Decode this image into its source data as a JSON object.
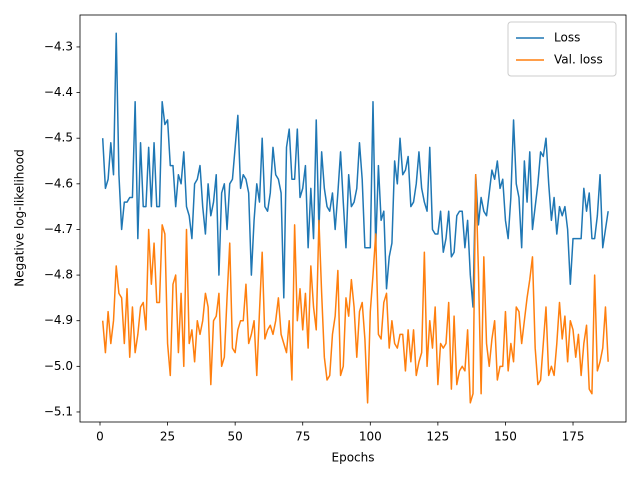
{
  "chart_data": {
    "type": "line",
    "xlabel": "Epochs",
    "ylabel": "Negative log-likelihood",
    "x": [
      1,
      2,
      3,
      4,
      5,
      6,
      7,
      8,
      9,
      10,
      11,
      12,
      13,
      14,
      15,
      16,
      17,
      18,
      19,
      20,
      21,
      22,
      23,
      24,
      25,
      26,
      27,
      28,
      29,
      30,
      31,
      32,
      33,
      34,
      35,
      36,
      37,
      38,
      39,
      40,
      41,
      42,
      43,
      44,
      45,
      46,
      47,
      48,
      49,
      50,
      51,
      52,
      53,
      54,
      55,
      56,
      57,
      58,
      59,
      60,
      61,
      62,
      63,
      64,
      65,
      66,
      67,
      68,
      69,
      70,
      71,
      72,
      73,
      74,
      75,
      76,
      77,
      78,
      79,
      80,
      81,
      82,
      83,
      84,
      85,
      86,
      87,
      88,
      89,
      90,
      91,
      92,
      93,
      94,
      95,
      96,
      97,
      98,
      99,
      100,
      101,
      102,
      103,
      104,
      105,
      106,
      107,
      108,
      109,
      110,
      111,
      112,
      113,
      114,
      115,
      116,
      117,
      118,
      119,
      120,
      121,
      122,
      123,
      124,
      125,
      126,
      127,
      128,
      129,
      130,
      131,
      132,
      133,
      134,
      135,
      136,
      137,
      138,
      139,
      140,
      141,
      142,
      143,
      144,
      145,
      146,
      147,
      148,
      149,
      150,
      151,
      152,
      153,
      154,
      155,
      156,
      157,
      158,
      159,
      160,
      161,
      162,
      163,
      164,
      165,
      166,
      167,
      168,
      169,
      170,
      171,
      172,
      173,
      174,
      175,
      176,
      177,
      178,
      179,
      180,
      181,
      182,
      183,
      184,
      185,
      186,
      187,
      188
    ],
    "series": [
      {
        "name": "Loss",
        "color": "#1f77b4",
        "values": [
          -4.5,
          -4.61,
          -4.59,
          -4.51,
          -4.58,
          -4.27,
          -4.58,
          -4.7,
          -4.64,
          -4.64,
          -4.63,
          -4.63,
          -4.42,
          -4.72,
          -4.51,
          -4.65,
          -4.65,
          -4.52,
          -4.65,
          -4.51,
          -4.65,
          -4.65,
          -4.42,
          -4.47,
          -4.46,
          -4.56,
          -4.56,
          -4.65,
          -4.58,
          -4.6,
          -4.53,
          -4.65,
          -4.67,
          -4.72,
          -4.6,
          -4.59,
          -4.56,
          -4.65,
          -4.71,
          -4.6,
          -4.67,
          -4.64,
          -4.58,
          -4.8,
          -4.62,
          -4.6,
          -4.7,
          -4.6,
          -4.59,
          -4.52,
          -4.45,
          -4.61,
          -4.58,
          -4.59,
          -4.62,
          -4.8,
          -4.68,
          -4.6,
          -4.64,
          -4.5,
          -4.65,
          -4.66,
          -4.62,
          -4.52,
          -4.58,
          -4.59,
          -4.62,
          -4.85,
          -4.52,
          -4.48,
          -4.59,
          -4.59,
          -4.48,
          -4.63,
          -4.61,
          -4.56,
          -4.74,
          -4.61,
          -4.72,
          -4.46,
          -4.7,
          -4.53,
          -4.61,
          -4.65,
          -4.66,
          -4.62,
          -4.7,
          -4.62,
          -4.53,
          -4.64,
          -4.74,
          -4.58,
          -4.65,
          -4.64,
          -4.61,
          -4.51,
          -4.59,
          -4.74,
          -4.74,
          -4.74,
          -4.42,
          -4.74,
          -4.56,
          -4.68,
          -4.66,
          -4.83,
          -4.76,
          -4.73,
          -4.55,
          -4.6,
          -4.5,
          -4.58,
          -4.57,
          -4.54,
          -4.65,
          -4.64,
          -4.6,
          -4.53,
          -4.61,
          -4.64,
          -4.66,
          -4.52,
          -4.7,
          -4.71,
          -4.71,
          -4.66,
          -4.75,
          -4.72,
          -4.66,
          -4.76,
          -4.75,
          -4.67,
          -4.66,
          -4.66,
          -4.74,
          -4.68,
          -4.8,
          -4.87,
          -4.58,
          -4.69,
          -4.63,
          -4.66,
          -4.67,
          -4.62,
          -4.57,
          -4.59,
          -4.55,
          -4.61,
          -4.59,
          -4.68,
          -4.72,
          -4.63,
          -4.46,
          -4.6,
          -4.63,
          -4.74,
          -4.55,
          -4.64,
          -4.53,
          -4.7,
          -4.65,
          -4.6,
          -4.53,
          -4.54,
          -4.5,
          -4.6,
          -4.68,
          -4.63,
          -4.71,
          -4.65,
          -4.67,
          -4.65,
          -4.7,
          -4.82,
          -4.72,
          -4.72,
          -4.72,
          -4.72,
          -4.61,
          -4.66,
          -4.62,
          -4.72,
          -4.72,
          -4.67,
          -4.58,
          -4.74,
          -4.7,
          -4.66
        ]
      },
      {
        "name": "Val. loss",
        "color": "#ff7f0e",
        "values": [
          -4.9,
          -4.97,
          -4.88,
          -4.95,
          -4.9,
          -4.78,
          -4.84,
          -4.85,
          -4.95,
          -4.83,
          -4.98,
          -4.87,
          -4.97,
          -4.93,
          -4.87,
          -4.86,
          -4.92,
          -4.7,
          -4.82,
          -4.73,
          -4.86,
          -4.86,
          -4.69,
          -4.71,
          -4.95,
          -5.02,
          -4.82,
          -4.8,
          -4.97,
          -4.84,
          -5.0,
          -4.7,
          -4.95,
          -4.92,
          -4.99,
          -4.9,
          -4.93,
          -4.9,
          -4.84,
          -4.87,
          -5.04,
          -4.9,
          -4.89,
          -4.84,
          -5.0,
          -4.98,
          -4.85,
          -4.73,
          -4.96,
          -4.97,
          -4.92,
          -4.9,
          -4.9,
          -4.82,
          -4.95,
          -4.93,
          -4.9,
          -5.02,
          -4.88,
          -4.75,
          -4.94,
          -4.92,
          -4.91,
          -4.93,
          -4.9,
          -4.85,
          -4.93,
          -4.95,
          -4.97,
          -4.9,
          -5.03,
          -4.69,
          -4.9,
          -4.83,
          -4.92,
          -4.84,
          -4.96,
          -4.78,
          -4.87,
          -4.92,
          -4.68,
          -4.84,
          -4.98,
          -5.03,
          -5.02,
          -4.93,
          -4.89,
          -4.79,
          -5.02,
          -5.0,
          -4.85,
          -4.89,
          -4.81,
          -4.87,
          -4.98,
          -4.88,
          -4.86,
          -4.94,
          -5.08,
          -4.88,
          -4.8,
          -4.71,
          -4.93,
          -4.94,
          -4.86,
          -4.84,
          -4.96,
          -4.9,
          -4.95,
          -4.96,
          -4.93,
          -4.93,
          -5.01,
          -4.92,
          -4.99,
          -4.92,
          -5.02,
          -4.99,
          -4.97,
          -4.75,
          -5.0,
          -4.9,
          -4.96,
          -4.87,
          -5.04,
          -4.95,
          -4.96,
          -4.95,
          -4.86,
          -5.05,
          -4.89,
          -5.04,
          -5.01,
          -5.0,
          -5.01,
          -4.92,
          -5.08,
          -5.06,
          -4.58,
          -4.79,
          -5.06,
          -4.76,
          -4.95,
          -5.0,
          -4.94,
          -4.9,
          -5.03,
          -5.0,
          -5.0,
          -4.88,
          -5.01,
          -4.95,
          -4.99,
          -4.87,
          -4.88,
          -4.95,
          -4.9,
          -4.85,
          -4.81,
          -4.76,
          -4.96,
          -5.04,
          -5.03,
          -4.95,
          -4.87,
          -5.02,
          -5.0,
          -5.02,
          -4.95,
          -4.86,
          -4.94,
          -4.89,
          -4.99,
          -4.9,
          -4.92,
          -4.98,
          -4.93,
          -5.02,
          -4.95,
          -4.91,
          -5.05,
          -5.06,
          -4.8,
          -5.01,
          -4.99,
          -4.96,
          -4.87,
          -4.99
        ]
      }
    ],
    "xlim": [
      -7.4,
      194.6
    ],
    "xticks": [
      0,
      25,
      50,
      75,
      100,
      125,
      150,
      175
    ],
    "ylim": [
      -5.122,
      -4.23
    ],
    "yticks": [
      {
        "value": -4.3,
        "label": "−4.3"
      },
      {
        "value": -4.4,
        "label": "−4.4"
      },
      {
        "value": -4.5,
        "label": "−4.5"
      },
      {
        "value": -4.6,
        "label": "−4.6"
      },
      {
        "value": -4.7,
        "label": "−4.7"
      },
      {
        "value": -4.8,
        "label": "−4.8"
      },
      {
        "value": -4.9,
        "label": "−4.9"
      },
      {
        "value": -5.0,
        "label": "−5.0"
      },
      {
        "value": -5.1,
        "label": "−5.1"
      }
    ],
    "legend": "upper right"
  }
}
